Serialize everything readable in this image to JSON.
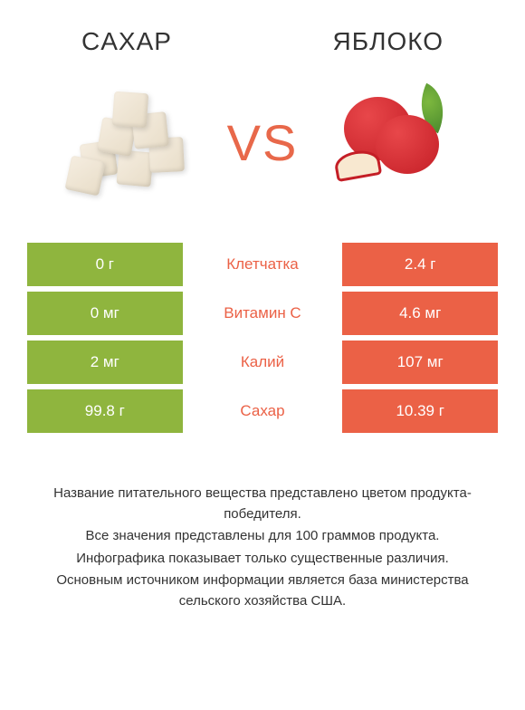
{
  "header": {
    "left_title": "CAXAP",
    "right_title": "ЯБЛОКО"
  },
  "vs_label": "VS",
  "colors": {
    "left_column": "#8fb53e",
    "right_column": "#eb6146",
    "center_green": "#8fb53e",
    "center_red": "#eb6146",
    "vs_text": "#e8684a",
    "text": "#333333",
    "background": "#ffffff"
  },
  "rows": [
    {
      "left": "0 г",
      "center": "Клетчатка",
      "right": "2.4 г",
      "winner": "right"
    },
    {
      "left": "0 мг",
      "center": "Витамин C",
      "right": "4.6 мг",
      "winner": "right"
    },
    {
      "left": "2 мг",
      "center": "Калий",
      "right": "107 мг",
      "winner": "right"
    },
    {
      "left": "99.8 г",
      "center": "Сахар",
      "right": "10.39 г",
      "winner": "right"
    }
  ],
  "footer": {
    "line1": "Название питательного вещества представлено цветом продукта-победителя.",
    "line2": "Все значения представлены для 100 граммов продукта.",
    "line3": "Инфографика показывает только существенные различия.",
    "line4": "Основным источником информации является база министерства сельского хозяйства США."
  },
  "typography": {
    "header_fontsize": 28,
    "vs_fontsize": 56,
    "cell_fontsize": 17,
    "footer_fontsize": 15
  }
}
